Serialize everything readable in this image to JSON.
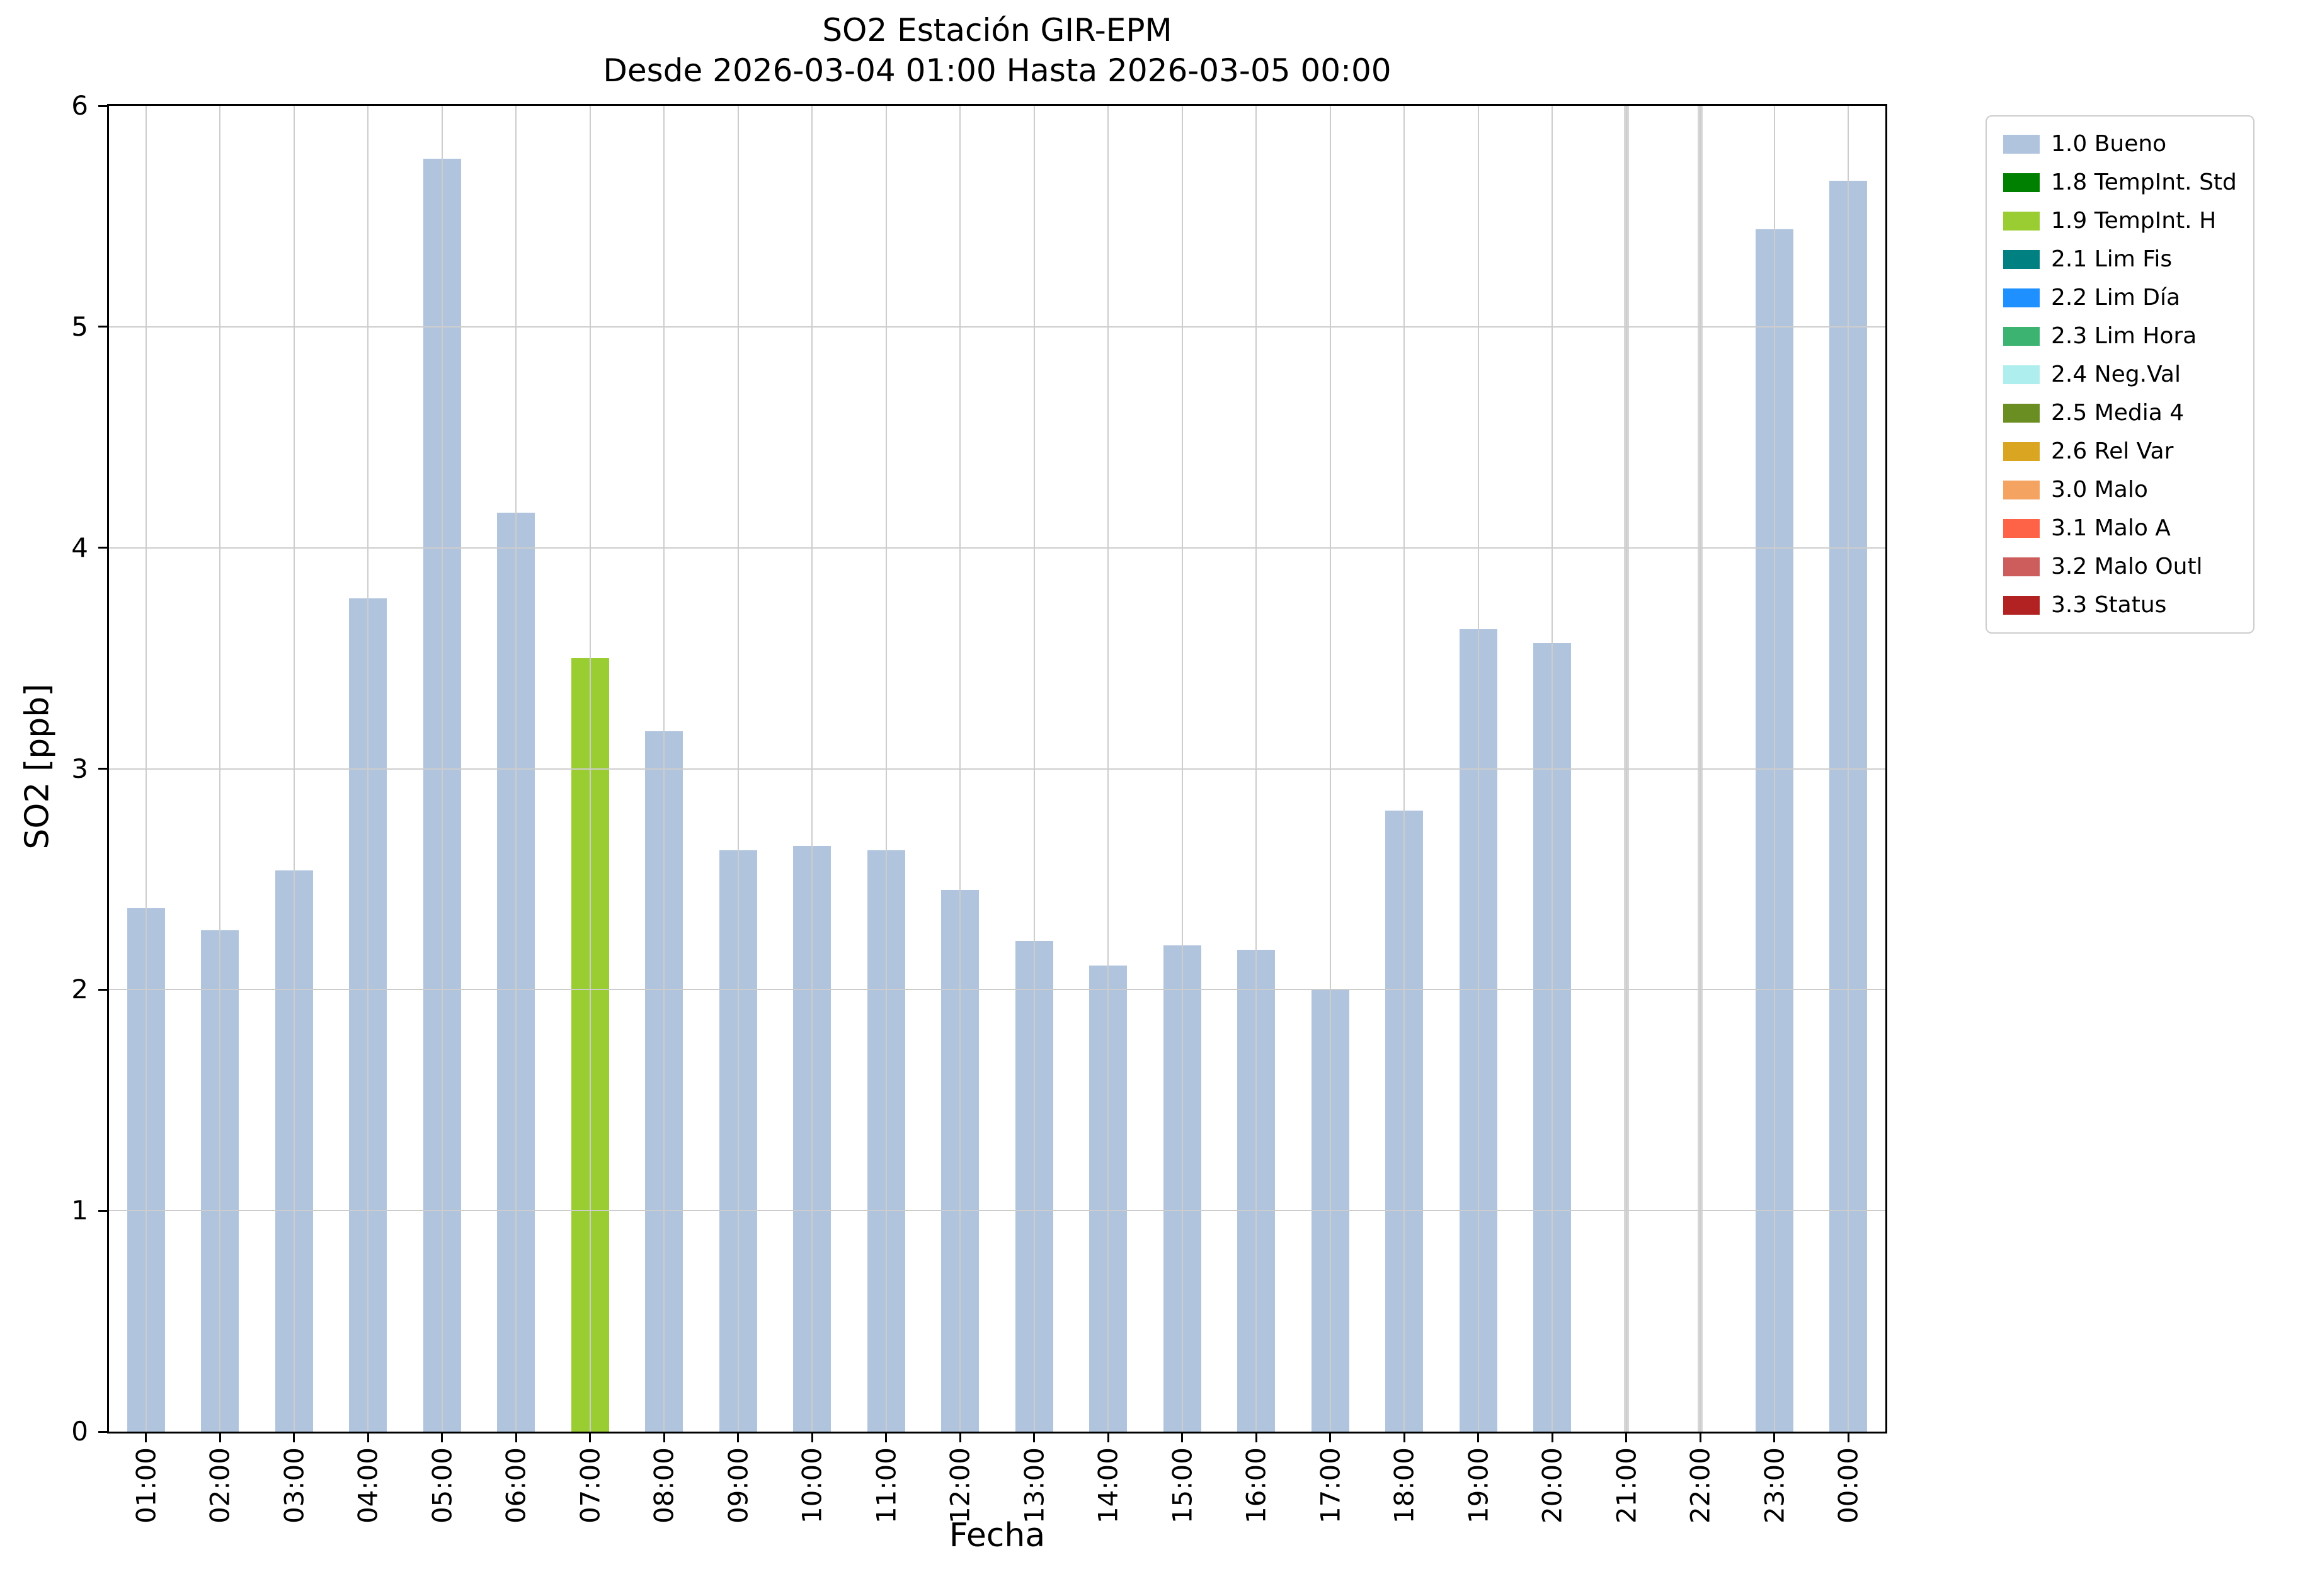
{
  "chart_data": {
    "type": "bar",
    "title": "SO2 Estación GIR-EPM",
    "subtitle": "Desde 2026-03-04 01:00 Hasta 2026-03-05 00:00",
    "xlabel": "Fecha",
    "ylabel": "SO2 [ppb]",
    "ylim": [
      0,
      6
    ],
    "yticks": [
      0,
      1,
      2,
      3,
      4,
      5,
      6
    ],
    "grid": true,
    "categories": [
      "01:00",
      "02:00",
      "03:00",
      "04:00",
      "05:00",
      "06:00",
      "07:00",
      "08:00",
      "09:00",
      "10:00",
      "11:00",
      "12:00",
      "13:00",
      "14:00",
      "15:00",
      "16:00",
      "17:00",
      "18:00",
      "19:00",
      "20:00",
      "21:00",
      "22:00",
      "23:00",
      "00:00"
    ],
    "values": [
      2.37,
      2.27,
      2.54,
      3.77,
      5.76,
      4.16,
      3.5,
      3.17,
      2.63,
      2.65,
      2.63,
      2.45,
      2.22,
      2.11,
      2.2,
      2.18,
      2.0,
      2.81,
      3.63,
      3.57,
      null,
      null,
      5.44,
      5.66
    ],
    "bar_status": [
      "1.0",
      "1.0",
      "1.0",
      "1.0",
      "1.0",
      "1.0",
      "1.9",
      "1.0",
      "1.0",
      "1.0",
      "1.0",
      "1.0",
      "1.0",
      "1.0",
      "1.0",
      "1.0",
      "1.0",
      "1.0",
      "1.0",
      "1.0",
      "missing",
      "missing",
      "1.0",
      "1.0"
    ],
    "colors": {
      "1.0": "#b0c4de",
      "1.9": "#9acd32",
      "missing": "#d6d6d6"
    },
    "legend": {
      "position": "outside upper right",
      "items": [
        {
          "label": "1.0 Bueno",
          "color": "#b0c4de"
        },
        {
          "label": "1.8 TempInt. Std",
          "color": "#008000"
        },
        {
          "label": "1.9 TempInt. H",
          "color": "#9acd32"
        },
        {
          "label": "2.1 Lim Fis",
          "color": "#008080"
        },
        {
          "label": "2.2 Lim Día",
          "color": "#1e90ff"
        },
        {
          "label": "2.3 Lim Hora",
          "color": "#3cb371"
        },
        {
          "label": "2.4 Neg.Val",
          "color": "#afeeee"
        },
        {
          "label": "2.5 Media 4",
          "color": "#6b8e23"
        },
        {
          "label": "2.6 Rel Var",
          "color": "#daa520"
        },
        {
          "label": "3.0 Malo",
          "color": "#f4a460"
        },
        {
          "label": "3.1 Malo A",
          "color": "#ff6347"
        },
        {
          "label": "3.2 Malo Outl",
          "color": "#cd5c5c"
        },
        {
          "label": "3.3 Status",
          "color": "#b22222"
        }
      ]
    }
  }
}
